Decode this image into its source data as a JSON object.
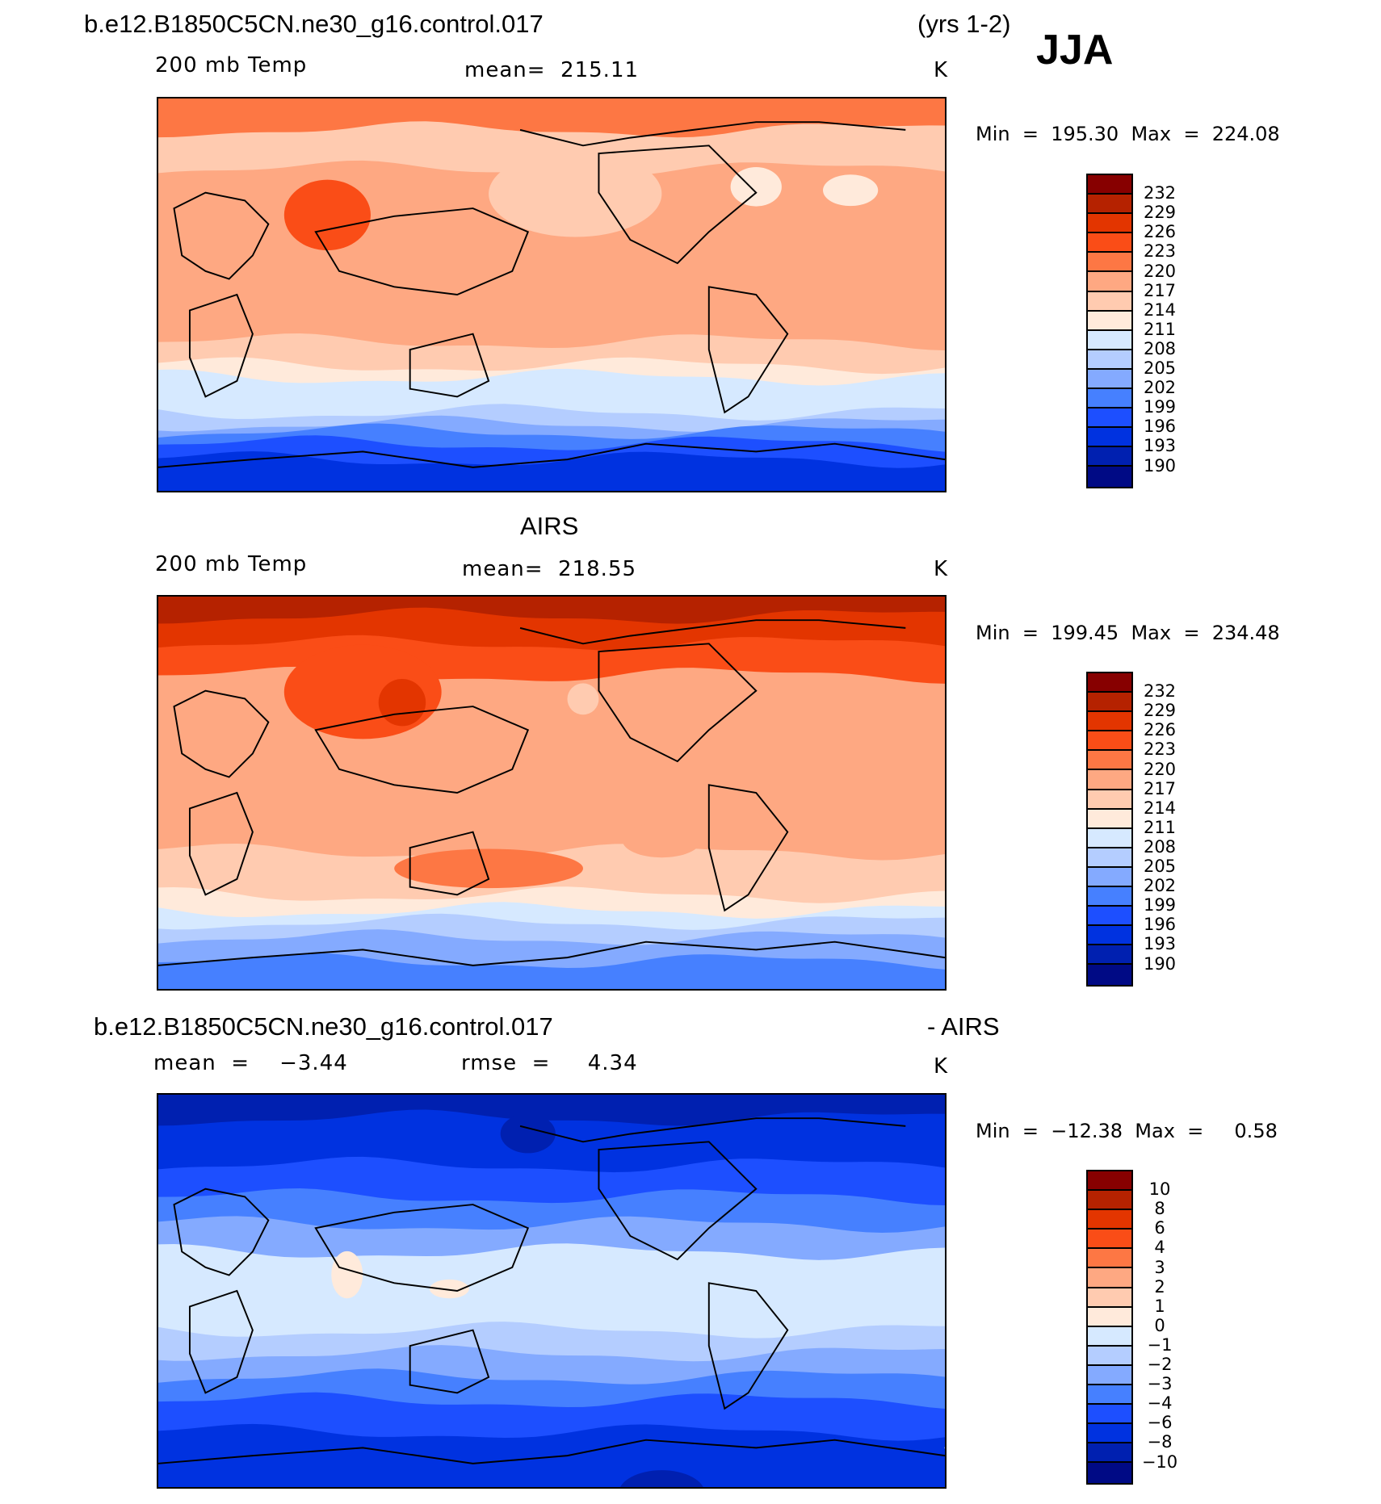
{
  "header": {
    "case_name": "b.e12.B1850C5CN.ne30_g16.control.017",
    "years": "(yrs 1-2)",
    "season": "JJA"
  },
  "panels": [
    {
      "title": "",
      "variable": "200 mb Temp",
      "stat": "mean=  215.11",
      "units": "K",
      "minmax": "Min  =  195.30  Max  =  224.08"
    },
    {
      "title": "AIRS",
      "variable": "200 mb Temp",
      "stat": "mean=  218.55",
      "units": "K",
      "minmax": "Min  =  199.45  Max  =  234.48"
    },
    {
      "title": "b.e12.B1850C5CN.ne30_g16.control.017",
      "title_right": "- AIRS",
      "variable": "mean  =    −3.44",
      "stat": "rmse  =     4.34",
      "units": "K",
      "minmax": "Min  =  −12.38  Max  =     0.58"
    }
  ],
  "colorbars": [
    {
      "levels": [
        "232",
        "229",
        "226",
        "223",
        "220",
        "217",
        "214",
        "211",
        "208",
        "205",
        "202",
        "199",
        "196",
        "193",
        "190"
      ]
    },
    {
      "levels": [
        "232",
        "229",
        "226",
        "223",
        "220",
        "217",
        "214",
        "211",
        "208",
        "205",
        "202",
        "199",
        "196",
        "193",
        "190"
      ]
    },
    {
      "levels": [
        "10",
        "8",
        "6",
        "4",
        "3",
        "2",
        "1",
        "0",
        "−1",
        "−2",
        "−3",
        "−4",
        "−6",
        "−8",
        "−10"
      ]
    }
  ],
  "colors": [
    "#870000",
    "#b52200",
    "#e33500",
    "#fa4d17",
    "#fd7744",
    "#fea882",
    "#ffcbb0",
    "#ffeadb",
    "#d6e9ff",
    "#b4cdff",
    "#84aaff",
    "#4680ff",
    "#1d4fff",
    "#0032e0",
    "#0020b0",
    "#000a85"
  ]
}
